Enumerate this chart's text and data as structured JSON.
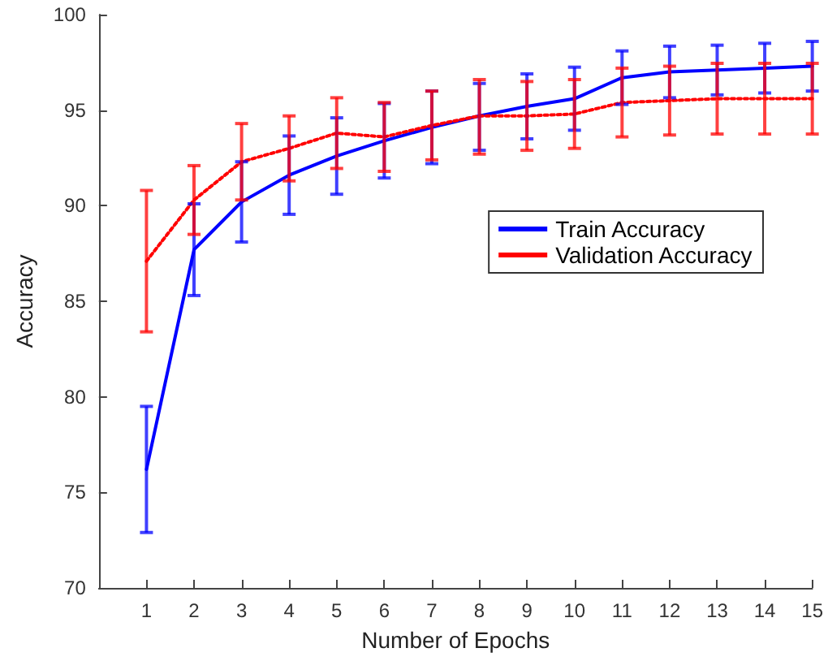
{
  "chart_data": {
    "type": "line",
    "xlabel": "Number of Epochs",
    "ylabel": "Accuracy",
    "x": [
      1,
      2,
      3,
      4,
      5,
      6,
      7,
      8,
      9,
      10,
      11,
      12,
      13,
      14,
      15
    ],
    "series": [
      {
        "name": "Train Accuracy",
        "color": "#0000ff",
        "line_style": "solid",
        "values": [
          76.2,
          87.7,
          90.2,
          91.6,
          92.6,
          93.4,
          94.1,
          94.7,
          95.2,
          95.6,
          96.7,
          97.0,
          97.1,
          97.2,
          97.3
        ],
        "errors": [
          3.3,
          2.4,
          2.1,
          2.05,
          2.0,
          1.95,
          1.9,
          [
            92.9,
            96.4
          ],
          1.7,
          1.65,
          1.4,
          1.35,
          1.3,
          1.3,
          1.3
        ]
      },
      {
        "name": "Validation Accuracy",
        "color": "#ff0000",
        "line_style": "dotted",
        "values": [
          87.1,
          90.3,
          92.3,
          93.0,
          93.8,
          93.6,
          94.2,
          94.7,
          94.7,
          94.8,
          95.4,
          95.5,
          95.6,
          95.6,
          95.6
        ],
        "errors": [
          3.7,
          1.8,
          2.0,
          1.7,
          1.85,
          1.8,
          1.8,
          [
            92.7,
            96.6
          ],
          1.8,
          1.8,
          1.8,
          1.8,
          1.85,
          1.85,
          1.85
        ]
      }
    ],
    "xlim": [
      0,
      15
    ],
    "xticks": [
      1,
      2,
      3,
      4,
      5,
      6,
      7,
      8,
      9,
      10,
      11,
      12,
      13,
      14,
      15
    ],
    "ylim": [
      70,
      100
    ],
    "yticks": [
      70,
      75,
      80,
      85,
      90,
      95,
      100
    ],
    "grid": false,
    "legend": "right",
    "marker": "none"
  }
}
